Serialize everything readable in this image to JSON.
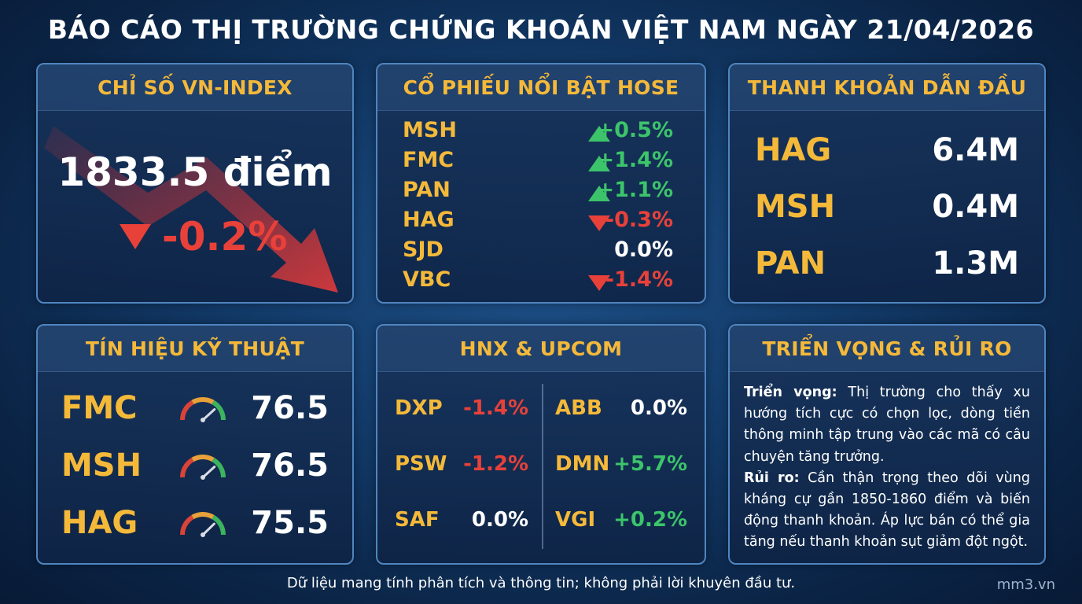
{
  "title": "BÁO CÁO THỊ TRƯỜNG CHỨNG KHOÁN VIỆT NAM NGÀY 21/04/2026",
  "vnindex": {
    "heading": "CHỈ SỐ VN-INDEX",
    "value": "1833.5 điểm",
    "change": "-0.2%"
  },
  "hose": {
    "heading": "CỔ PHIẾU NỔI BẬT HOSE",
    "rows": [
      {
        "symbol": "MSH",
        "direction": "up",
        "change": "+0.5%"
      },
      {
        "symbol": "FMC",
        "direction": "up",
        "change": "+1.4%"
      },
      {
        "symbol": "PAN",
        "direction": "up",
        "change": "+1.1%"
      },
      {
        "symbol": "HAG",
        "direction": "down",
        "change": "-0.3%"
      },
      {
        "symbol": "SJD",
        "direction": "none",
        "change": "0.0%"
      },
      {
        "symbol": "VBC",
        "direction": "down",
        "change": "-1.4%"
      }
    ]
  },
  "liquidity": {
    "heading": "THANH KHOẢN DẪN ĐẦU",
    "rows": [
      {
        "symbol": "HAG",
        "value": "6.4M"
      },
      {
        "symbol": "MSH",
        "value": "0.4M"
      },
      {
        "symbol": "PAN",
        "value": "1.3M"
      }
    ]
  },
  "technical": {
    "heading": "TÍN HIỆU KỸ THUẬT",
    "rows": [
      {
        "symbol": "FMC",
        "value": "76.5",
        "gauge_level": 0.765
      },
      {
        "symbol": "MSH",
        "value": "76.5",
        "gauge_level": 0.765
      },
      {
        "symbol": "HAG",
        "value": "75.5",
        "gauge_level": 0.755
      }
    ]
  },
  "hnx": {
    "heading": "HNX & UPCOM",
    "left": [
      {
        "symbol": "DXP",
        "change": "-1.4%",
        "tone": "neg"
      },
      {
        "symbol": "PSW",
        "change": "-1.2%",
        "tone": "neg"
      },
      {
        "symbol": "SAF",
        "change": "0.0%",
        "tone": "neu"
      }
    ],
    "right": [
      {
        "symbol": "ABB",
        "change": "0.0%",
        "tone": "neu"
      },
      {
        "symbol": "DMN",
        "change": "+5.7%",
        "tone": "pos"
      },
      {
        "symbol": "VGI",
        "change": "+0.2%",
        "tone": "pos"
      }
    ]
  },
  "outlook": {
    "heading": "TRIỂN VỌNG & RỦI RO",
    "outlook_label": "Triển vọng:",
    "outlook_text": " Thị trường cho thấy xu hướng tích cực có chọn lọc, dòng tiền thông minh tập trung vào các mã có câu chuyện tăng trưởng.",
    "risk_label": "Rủi ro:",
    "risk_text": " Cần thận trọng theo dõi vùng kháng cự gần 1850-1860 điểm và biến động thanh khoản. Áp lực bán có thể gia tăng nếu thanh khoản sụt giảm đột ngột."
  },
  "footer": "Dữ liệu mang tính phân tích và thông tin; không phải lời khuyên đầu tư.",
  "watermark": "mm3.vn",
  "colors": {
    "accent": "#f5b93a",
    "positive": "#3cc46a",
    "negative": "#e8413a",
    "background": "#123a68"
  }
}
